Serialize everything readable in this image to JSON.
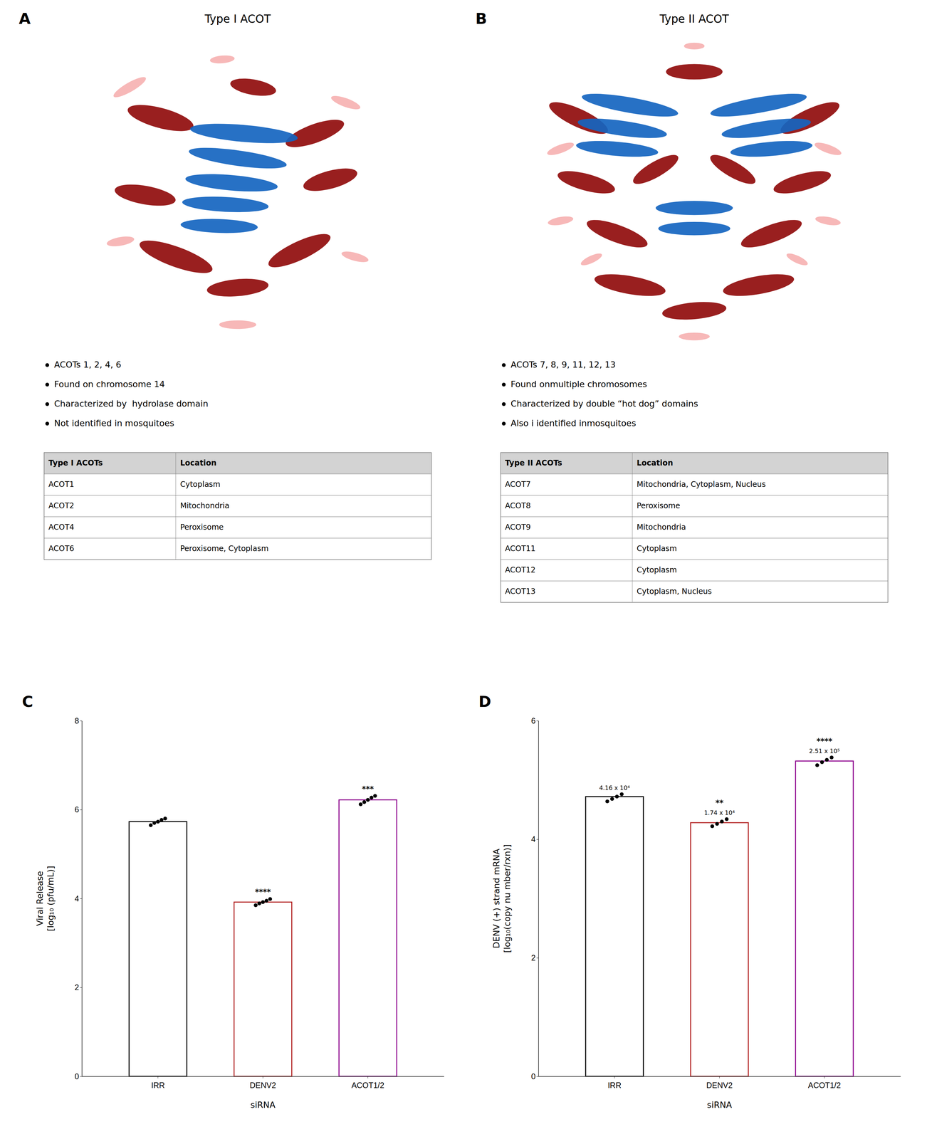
{
  "chart_data": [
    {
      "type": "panel",
      "label": "A",
      "title": "Type I ACOT",
      "bullets": [
        "ACOTs 1, 2, 4, 6",
        "Found on chromosome 14",
        "Characterized by  hydrolase domain",
        "Not identified in mosquitoes"
      ],
      "table_header": [
        "Type I ACOTs",
        "Location"
      ],
      "table_rows": [
        [
          "ACOT1",
          "Cytoplasm"
        ],
        [
          "ACOT2",
          "Mitochondria"
        ],
        [
          "ACOT4",
          "Peroxisome"
        ],
        [
          "ACOT6",
          "Peroxisome, Cytoplasm"
        ]
      ]
    },
    {
      "type": "panel",
      "label": "B",
      "title": "Type II ACOT",
      "bullets": [
        "ACOTs 7, 8, 9, 11, 12, 13",
        "Found on​multiple chromosomes",
        "Characterized by double “hot dog” domains",
        "Also i identified in​mosquitoes"
      ],
      "table_header": [
        "Type II ACOTs",
        "Location"
      ],
      "table_rows": [
        [
          "ACOT7",
          "Mitochondria, Cytoplasm, Nucleus"
        ],
        [
          "ACOT8",
          "Peroxisome"
        ],
        [
          "ACOT9",
          "Mitochondria"
        ],
        [
          "ACOT11",
          "Cytoplasm"
        ],
        [
          "ACOT12",
          "Cytoplasm"
        ],
        [
          "ACOT13",
          "Cytoplasm, Nucleus"
        ]
      ]
    },
    {
      "type": "bar",
      "label": "C",
      "categories": [
        "IRR",
        "DENV2",
        "ACOT1/2"
      ],
      "values": [
        5.73,
        3.92,
        6.22
      ],
      "colors": [
        "#000000",
        "#B22222",
        "#8B008B"
      ],
      "points": [
        [
          5.65,
          5.7,
          5.73,
          5.77,
          5.8
        ],
        [
          3.85,
          3.89,
          3.92,
          3.95,
          3.99
        ],
        [
          6.12,
          6.17,
          6.22,
          6.27,
          6.31
        ]
      ],
      "sig_labels": [
        null,
        "****",
        "***"
      ],
      "y_label": "Viral Release\n[log₁₀ (pfu/mL)]",
      "x_label": "siRNA",
      "ylim": [
        0,
        8
      ],
      "yticks": [
        0,
        2,
        4,
        6,
        8
      ]
    },
    {
      "type": "bar",
      "label": "D",
      "categories": [
        "IRR",
        "DENV2",
        "ACOT1/2"
      ],
      "values": [
        4.72,
        4.28,
        5.32
      ],
      "colors": [
        "#000000",
        "#B22222",
        "#8B008B"
      ],
      "points": [
        [
          4.64,
          4.68,
          4.72,
          4.76
        ],
        [
          4.22,
          4.26,
          4.3,
          4.34
        ],
        [
          5.25,
          5.3,
          5.34,
          5.38
        ]
      ],
      "sig_labels": [
        null,
        "**",
        "****"
      ],
      "annotations": [
        "4.16 x 10⁴",
        "1.74 x 10⁴",
        "2.51 x 10⁵"
      ],
      "y_label": "DENV (+) strand mRNA\n[log₁₀(copy nu mber/rxn)]",
      "x_label": "siRNA",
      "ylim": [
        0,
        6
      ],
      "yticks": [
        0,
        2,
        4,
        6
      ]
    }
  ]
}
